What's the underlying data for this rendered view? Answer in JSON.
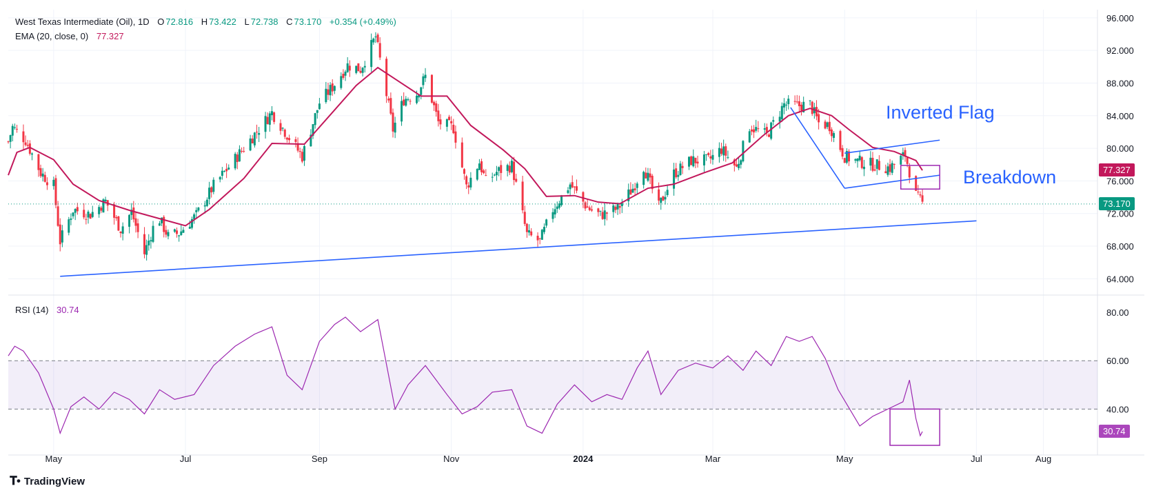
{
  "header": {
    "symbol": "West Texas Intermediate (Oil), 1D",
    "open_label": "O",
    "open": "72.816",
    "high_label": "H",
    "high": "73.422",
    "low_label": "L",
    "low": "72.738",
    "close_label": "C",
    "close": "73.170",
    "change": "+0.354 (+0.49%)",
    "ema_label": "EMA (20, close, 0)",
    "ema_value": "77.327",
    "rsi_label": "RSI (14)",
    "rsi_value": "30.74"
  },
  "badges": {
    "ema": "77.327",
    "price": "73.170",
    "rsi": "30.74"
  },
  "annotations": {
    "inverted_flag": "Inverted Flag",
    "breakdown": "Breakdown"
  },
  "brand": "TradingView",
  "colors": {
    "up": "#089981",
    "down": "#f23645",
    "ema": "#c2185b",
    "trendline": "#2962ff",
    "rsi": "#9c27b0",
    "rsi_band": "#7e57c2",
    "box": "#9c27b0"
  },
  "chart_data": {
    "type": "candlestick",
    "price_axis": {
      "ticks": [
        "96.000",
        "92.000",
        "88.000",
        "84.000",
        "80.000",
        "76.000",
        "72.000",
        "68.000",
        "64.000"
      ],
      "range": [
        62,
        97
      ]
    },
    "rsi_axis": {
      "ticks": [
        "80.00",
        "60.00",
        "40.00"
      ],
      "range": [
        21,
        86
      ],
      "band": [
        40,
        60
      ]
    },
    "x_axis": {
      "ticks": [
        "May",
        "Jul",
        "Sep",
        "Nov",
        "2024",
        "Mar",
        "May",
        "Jul",
        "Aug"
      ],
      "tick_dates": [
        "2023-05-01",
        "2023-07-01",
        "2023-09-01",
        "2023-11-01",
        "2024-01-01",
        "2024-03-01",
        "2024-05-01",
        "2024-07-01",
        "2024-08-01"
      ],
      "range": [
        "2023-04-10",
        "2024-08-26"
      ]
    },
    "close_path": [
      [
        "2023-04-10",
        80.8
      ],
      [
        "2023-04-12",
        82.6
      ],
      [
        "2023-04-18",
        81.0
      ],
      [
        "2023-04-25",
        77.0
      ],
      [
        "2023-05-01",
        75.4
      ],
      [
        "2023-05-04",
        68.6
      ],
      [
        "2023-05-10",
        72.5
      ],
      [
        "2023-05-18",
        71.9
      ],
      [
        "2023-05-25",
        73.5
      ],
      [
        "2023-06-01",
        70.1
      ],
      [
        "2023-06-06",
        72.2
      ],
      [
        "2023-06-12",
        67.1
      ],
      [
        "2023-06-18",
        71.8
      ],
      [
        "2023-06-23",
        69.2
      ],
      [
        "2023-06-28",
        69.6
      ],
      [
        "2023-07-06",
        71.8
      ],
      [
        "2023-07-14",
        75.4
      ],
      [
        "2023-07-24",
        78.7
      ],
      [
        "2023-08-01",
        81.4
      ],
      [
        "2023-08-10",
        84.4
      ],
      [
        "2023-08-18",
        81.3
      ],
      [
        "2023-08-24",
        79.0
      ],
      [
        "2023-09-01",
        85.6
      ],
      [
        "2023-09-07",
        87.5
      ],
      [
        "2023-09-14",
        90.2
      ],
      [
        "2023-09-20",
        89.7
      ],
      [
        "2023-09-27",
        93.7
      ],
      [
        "2023-10-05",
        82.3
      ],
      [
        "2023-10-10",
        86.0
      ],
      [
        "2023-10-16",
        86.7
      ],
      [
        "2023-10-20",
        88.8
      ],
      [
        "2023-10-26",
        83.2
      ],
      [
        "2023-11-02",
        82.5
      ],
      [
        "2023-11-08",
        75.3
      ],
      [
        "2023-11-14",
        78.3
      ],
      [
        "2023-11-17",
        75.9
      ],
      [
        "2023-11-22",
        77.1
      ],
      [
        "2023-11-29",
        77.9
      ],
      [
        "2023-12-06",
        69.4
      ],
      [
        "2023-12-12",
        68.6
      ],
      [
        "2023-12-18",
        72.5
      ],
      [
        "2023-12-26",
        75.6
      ],
      [
        "2024-01-03",
        72.7
      ],
      [
        "2024-01-09",
        71.8
      ],
      [
        "2024-01-17",
        72.6
      ],
      [
        "2024-01-24",
        75.1
      ],
      [
        "2024-01-29",
        77.8
      ],
      [
        "2024-02-05",
        72.8
      ],
      [
        "2024-02-12",
        76.9
      ],
      [
        "2024-02-20",
        78.5
      ],
      [
        "2024-02-28",
        78.5
      ],
      [
        "2024-03-05",
        79.9
      ],
      [
        "2024-03-12",
        77.6
      ],
      [
        "2024-03-18",
        82.7
      ],
      [
        "2024-03-26",
        81.6
      ],
      [
        "2024-04-03",
        85.4
      ],
      [
        "2024-04-09",
        85.2
      ],
      [
        "2024-04-15",
        85.4
      ],
      [
        "2024-04-19",
        83.1
      ],
      [
        "2024-04-24",
        82.8
      ],
      [
        "2024-05-01",
        79.0
      ],
      [
        "2024-05-07",
        78.4
      ],
      [
        "2024-05-14",
        78.0
      ],
      [
        "2024-05-22",
        77.6
      ],
      [
        "2024-05-29",
        79.2
      ],
      [
        "2024-06-03",
        74.2
      ],
      [
        "2024-06-06",
        73.2
      ]
    ],
    "ema20_path": [
      [
        "2023-04-10",
        76.7
      ],
      [
        "2023-04-14",
        79.5
      ],
      [
        "2023-04-20",
        80.1
      ],
      [
        "2023-05-01",
        78.6
      ],
      [
        "2023-05-10",
        75.6
      ],
      [
        "2023-05-22",
        73.6
      ],
      [
        "2023-06-05",
        72.4
      ],
      [
        "2023-06-20",
        71.3
      ],
      [
        "2023-07-01",
        70.5
      ],
      [
        "2023-07-12",
        72.5
      ],
      [
        "2023-07-28",
        76.3
      ],
      [
        "2023-08-10",
        80.6
      ],
      [
        "2023-08-25",
        80.5
      ],
      [
        "2023-09-07",
        84.4
      ],
      [
        "2023-09-18",
        87.7
      ],
      [
        "2023-09-28",
        89.9
      ],
      [
        "2023-10-06",
        88.5
      ],
      [
        "2023-10-18",
        86.4
      ],
      [
        "2023-10-30",
        86.4
      ],
      [
        "2023-11-10",
        82.8
      ],
      [
        "2023-11-25",
        79.8
      ],
      [
        "2023-12-05",
        77.5
      ],
      [
        "2023-12-15",
        74.1
      ],
      [
        "2023-12-28",
        74.2
      ],
      [
        "2024-01-08",
        73.4
      ],
      [
        "2024-01-18",
        73.2
      ],
      [
        "2024-01-31",
        75.1
      ],
      [
        "2024-02-12",
        75.6
      ],
      [
        "2024-02-26",
        77.0
      ],
      [
        "2024-03-10",
        78.2
      ],
      [
        "2024-03-24",
        81.5
      ],
      [
        "2024-04-05",
        84.0
      ],
      [
        "2024-04-15",
        84.9
      ],
      [
        "2024-04-25",
        84.0
      ],
      [
        "2024-05-03",
        82.3
      ],
      [
        "2024-05-14",
        80.1
      ],
      [
        "2024-05-24",
        79.6
      ],
      [
        "2024-06-03",
        78.5
      ],
      [
        "2024-06-06",
        77.3
      ]
    ],
    "rsi_path": [
      [
        "2023-04-10",
        62
      ],
      [
        "2023-04-13",
        66
      ],
      [
        "2023-04-17",
        64
      ],
      [
        "2023-04-24",
        55
      ],
      [
        "2023-05-01",
        40
      ],
      [
        "2023-05-04",
        30
      ],
      [
        "2023-05-09",
        41
      ],
      [
        "2023-05-15",
        45
      ],
      [
        "2023-05-22",
        40
      ],
      [
        "2023-05-29",
        47
      ],
      [
        "2023-06-05",
        44
      ],
      [
        "2023-06-12",
        38
      ],
      [
        "2023-06-19",
        48
      ],
      [
        "2023-06-26",
        44
      ],
      [
        "2023-07-05",
        46
      ],
      [
        "2023-07-14",
        58
      ],
      [
        "2023-07-24",
        66
      ],
      [
        "2023-08-02",
        71
      ],
      [
        "2023-08-10",
        74
      ],
      [
        "2023-08-17",
        54
      ],
      [
        "2023-08-24",
        48
      ],
      [
        "2023-09-01",
        68
      ],
      [
        "2023-09-08",
        75
      ],
      [
        "2023-09-13",
        78
      ],
      [
        "2023-09-20",
        72
      ],
      [
        "2023-09-28",
        77
      ],
      [
        "2023-10-06",
        40
      ],
      [
        "2023-10-12",
        50
      ],
      [
        "2023-10-20",
        58
      ],
      [
        "2023-10-30",
        46
      ],
      [
        "2023-11-06",
        38
      ],
      [
        "2023-11-13",
        41
      ],
      [
        "2023-11-20",
        47
      ],
      [
        "2023-11-29",
        48
      ],
      [
        "2023-12-06",
        33
      ],
      [
        "2023-12-13",
        30
      ],
      [
        "2023-12-20",
        42
      ],
      [
        "2023-12-28",
        50
      ],
      [
        "2024-01-05",
        43
      ],
      [
        "2024-01-12",
        46
      ],
      [
        "2024-01-19",
        44
      ],
      [
        "2024-01-26",
        57
      ],
      [
        "2024-01-31",
        64
      ],
      [
        "2024-02-06",
        46
      ],
      [
        "2024-02-14",
        56
      ],
      [
        "2024-02-22",
        59
      ],
      [
        "2024-03-01",
        57
      ],
      [
        "2024-03-08",
        62
      ],
      [
        "2024-03-15",
        56
      ],
      [
        "2024-03-21",
        64
      ],
      [
        "2024-03-28",
        58
      ],
      [
        "2024-04-04",
        70
      ],
      [
        "2024-04-10",
        68
      ],
      [
        "2024-04-16",
        70
      ],
      [
        "2024-04-22",
        61
      ],
      [
        "2024-04-28",
        48
      ],
      [
        "2024-05-04",
        39
      ],
      [
        "2024-05-08",
        33
      ],
      [
        "2024-05-14",
        37
      ],
      [
        "2024-05-21",
        40
      ],
      [
        "2024-05-28",
        43
      ],
      [
        "2024-05-31",
        52
      ],
      [
        "2024-06-03",
        36
      ],
      [
        "2024-06-05",
        29
      ],
      [
        "2024-06-06",
        30.7
      ]
    ],
    "trendline": [
      [
        "2023-05-04",
        64.3
      ],
      [
        "2024-07-01",
        71.1
      ]
    ],
    "flag_upper": [
      [
        "2024-05-01",
        79.4
      ],
      [
        "2024-06-14",
        81.0
      ]
    ],
    "flag_lower": [
      [
        "2024-05-01",
        75.1
      ],
      [
        "2024-06-14",
        76.7
      ]
    ],
    "flag_pole": [
      [
        "2024-04-06",
        85.0
      ],
      [
        "2024-05-01",
        75.1
      ]
    ]
  }
}
